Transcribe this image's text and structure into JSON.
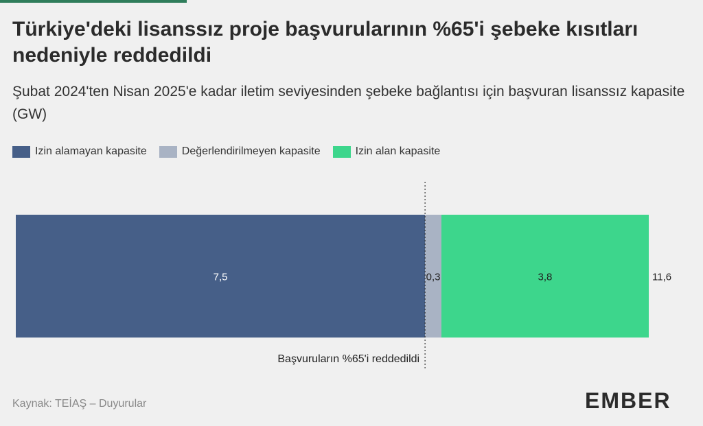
{
  "title": "Türkiye'deki lisanssız proje başvurularının %65'i şebeke kısıtları nedeniyle reddedildi",
  "subtitle": "Şubat 2024'ten Nisan 2025'e kadar iletim seviyesinden şebeke bağlantısı için başvuran lisanssız kapasite (GW)",
  "legend": [
    {
      "label": "Izin alamayan kapasite",
      "color": "#465f88"
    },
    {
      "label": "Değerlendirilmeyen kapasite",
      "color": "#a9b3c4"
    },
    {
      "label": "Izin alan kapasite",
      "color": "#3dd68c"
    }
  ],
  "chart_data": {
    "type": "bar",
    "orientation": "horizontal-stacked",
    "series": [
      {
        "name": "Izin alamayan kapasite",
        "value": 7.5,
        "label": "7,5",
        "color": "#465f88"
      },
      {
        "name": "Değerlendirilmeyen kapasite",
        "value": 0.3,
        "label": "0,3",
        "color": "#a9b3c4"
      },
      {
        "name": "Izin alan kapasite",
        "value": 3.8,
        "label": "3,8",
        "color": "#3dd68c"
      }
    ],
    "total": 11.6,
    "total_label": "11,6",
    "annotation": "Başvuruların %65'i reddedildi",
    "xlim": [
      0,
      11.6
    ]
  },
  "footer": {
    "source": "Kaynak: TEİAŞ – Duyurular",
    "logo": "EMBER"
  }
}
